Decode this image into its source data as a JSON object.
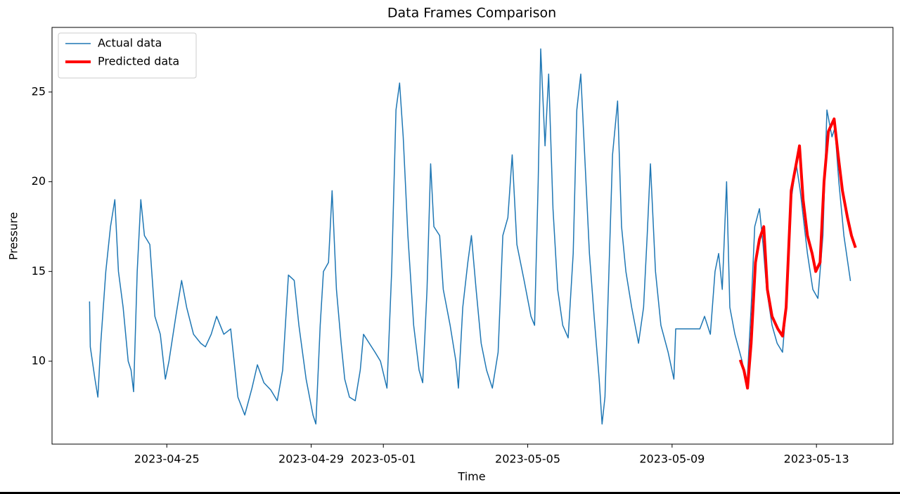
{
  "chart_data": {
    "type": "line",
    "title": "Data Frames Comparison",
    "xlabel": "Time",
    "ylabel": "Pressure",
    "xlim": [
      19468.82,
      19492.12
    ],
    "ylim": [
      5.38,
      28.6
    ],
    "xticks": [
      {
        "value": 19472,
        "label": "2023-04-25"
      },
      {
        "value": 19476,
        "label": "2023-04-29"
      },
      {
        "value": 19478,
        "label": "2023-05-01"
      },
      {
        "value": 19482,
        "label": "2023-05-05"
      },
      {
        "value": 19486,
        "label": "2023-05-09"
      },
      {
        "value": 19490,
        "label": "2023-05-13"
      }
    ],
    "yticks": [
      10,
      15,
      20,
      25
    ],
    "grid": false,
    "legend": "upper left",
    "series": [
      {
        "name": "Actual data",
        "color": "#1f77b4",
        "linewidth": 1.5,
        "x": [
          19469.86,
          19469.88,
          19470.01,
          19470.09,
          19470.17,
          19470.31,
          19470.44,
          19470.56,
          19470.66,
          19470.79,
          19470.93,
          19471.01,
          19471.08,
          19471.18,
          19471.28,
          19471.38,
          19471.53,
          19471.67,
          19471.82,
          19471.96,
          19472.06,
          19472.25,
          19472.41,
          19472.55,
          19472.74,
          19472.94,
          19473.07,
          19473.23,
          19473.38,
          19473.58,
          19473.77,
          19473.97,
          19474.16,
          19474.36,
          19474.51,
          19474.69,
          19474.88,
          19475.06,
          19475.21,
          19475.37,
          19475.53,
          19475.66,
          19475.86,
          19476.05,
          19476.13,
          19476.25,
          19476.34,
          19476.48,
          19476.58,
          19476.7,
          19476.83,
          19476.93,
          19477.06,
          19477.22,
          19477.36,
          19477.45,
          19477.61,
          19477.77,
          19477.92,
          19478.1,
          19478.23,
          19478.35,
          19478.45,
          19478.55,
          19478.68,
          19478.84,
          19478.99,
          19479.09,
          19479.21,
          19479.31,
          19479.4,
          19479.56,
          19479.66,
          19479.85,
          19480.01,
          19480.08,
          19480.2,
          19480.34,
          19480.44,
          19480.57,
          19480.71,
          19480.86,
          19481.02,
          19481.18,
          19481.31,
          19481.45,
          19481.57,
          19481.7,
          19481.9,
          19482.09,
          19482.19,
          19482.29,
          19482.36,
          19482.48,
          19482.58,
          19482.7,
          19482.83,
          19482.97,
          19483.12,
          19483.26,
          19483.36,
          19483.47,
          19483.59,
          19483.71,
          19483.84,
          19483.98,
          19484.06,
          19484.14,
          19484.25,
          19484.35,
          19484.49,
          19484.6,
          19484.72,
          19484.88,
          19485.07,
          19485.21,
          19485.31,
          19485.4,
          19485.54,
          19485.69,
          19485.89,
          19486.05,
          19486.1,
          19486.77,
          19486.9,
          19487.06,
          19487.19,
          19487.29,
          19487.39,
          19487.51,
          19487.6,
          19487.74,
          19487.94,
          19488.07,
          19488.19,
          19488.29,
          19488.42,
          19488.52,
          19488.62,
          19488.77,
          19488.91,
          19489.06,
          19489.16,
          19489.3,
          19489.44,
          19489.55,
          19489.75,
          19489.9,
          19490.04,
          19490.18,
          19490.29,
          19490.43,
          19490.51,
          19490.62,
          19490.76,
          19490.94
        ],
        "values": [
          13.3,
          10.8,
          9.0,
          8.0,
          11,
          15,
          17.5,
          19,
          15,
          13,
          10,
          9.5,
          8.3,
          15,
          19,
          17,
          16.5,
          12.5,
          11.5,
          9,
          10,
          12.5,
          14.5,
          13,
          11.5,
          11,
          10.8,
          11.5,
          12.5,
          11.5,
          11.8,
          8,
          7,
          8.5,
          9.8,
          8.8,
          8.4,
          7.8,
          9.5,
          14.8,
          14.5,
          12,
          9,
          7,
          6.5,
          12,
          15,
          15.5,
          19.5,
          14,
          11,
          9,
          8,
          7.8,
          9.5,
          11.5,
          11,
          10.5,
          10,
          8.5,
          15,
          24,
          25.5,
          22.5,
          17,
          12,
          9.5,
          8.8,
          14,
          21,
          17.5,
          17,
          14,
          12,
          10,
          8.5,
          13,
          15.5,
          17,
          14,
          11,
          9.5,
          8.5,
          10.5,
          17,
          18,
          21.5,
          16.5,
          14.5,
          12.5,
          12,
          20,
          27.4,
          22,
          26,
          18.5,
          14,
          12,
          11.3,
          16,
          24,
          26,
          21,
          16,
          12.5,
          9,
          6.5,
          8,
          15,
          21.5,
          24.5,
          17.5,
          15,
          13,
          11,
          13,
          17,
          21,
          15,
          12,
          10.5,
          9,
          11.8,
          11.8,
          12.5,
          11.5,
          15,
          16,
          14,
          20,
          13,
          11.5,
          10,
          8.5,
          13,
          17.5,
          18.5,
          16.5,
          14,
          12,
          11,
          10.5,
          13,
          19,
          21,
          19.5,
          16,
          14,
          13.5,
          17,
          24,
          22.5,
          23,
          20,
          17,
          14.5
        ]
      },
      {
        "name": "Predicted data",
        "color": "#ff0000",
        "linewidth": 4,
        "x": [
          19487.9,
          19487.99,
          19488.09,
          19488.19,
          19488.31,
          19488.42,
          19488.54,
          19488.64,
          19488.77,
          19488.93,
          19489.06,
          19489.16,
          19489.3,
          19489.44,
          19489.53,
          19489.63,
          19489.75,
          19489.88,
          19489.98,
          19490.1,
          19490.21,
          19490.33,
          19490.49,
          19490.6,
          19490.72,
          19490.86,
          19490.97,
          19491.07
        ],
        "values": [
          10,
          9.5,
          8.5,
          11,
          15.5,
          16.8,
          17.5,
          14,
          12.5,
          11.8,
          11.4,
          13,
          19.5,
          21,
          22,
          19,
          17,
          16,
          15,
          15.5,
          20,
          22.8,
          23.5,
          21.5,
          19.5,
          18,
          17,
          16.4
        ]
      }
    ]
  }
}
